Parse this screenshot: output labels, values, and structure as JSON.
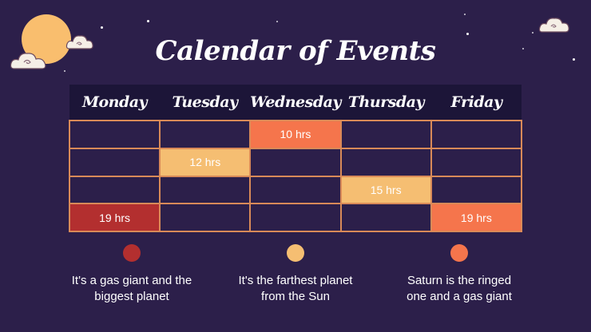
{
  "title": "Calendar of Events",
  "days": [
    "Monday",
    "Tuesday",
    "Wednesday",
    "Thursday",
    "Friday"
  ],
  "rows": [
    [
      "",
      "",
      "10 hrs",
      "",
      ""
    ],
    [
      "",
      "12 hrs",
      "",
      "",
      ""
    ],
    [
      "",
      "",
      "",
      "15 hrs",
      ""
    ],
    [
      "19 hrs",
      "",
      "",
      "",
      "19 hrs"
    ]
  ],
  "colors": {
    "background": "#2c1f4a",
    "header": "#1c1538",
    "grid_line": "#d98a58",
    "red": "#b32f2f",
    "orange": "#f5754c",
    "yellow": "#f5be72",
    "moon": "#f9be6e"
  },
  "legend": [
    {
      "color": "#b32f2f",
      "line1": "It's a gas giant and the",
      "line2": "biggest planet"
    },
    {
      "color": "#f5be72",
      "line1": "It's the farthest planet",
      "line2": "from the Sun"
    },
    {
      "color": "#f5754c",
      "line1": "Saturn is the ringed",
      "line2": "one and a gas giant"
    }
  ]
}
